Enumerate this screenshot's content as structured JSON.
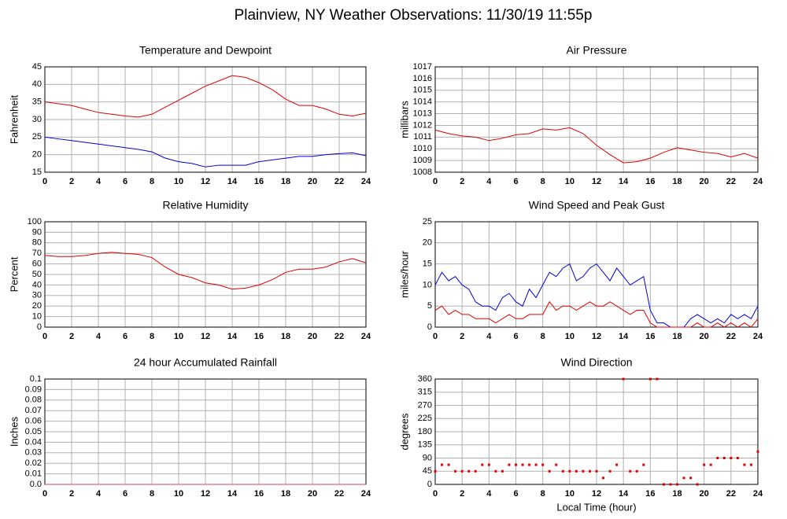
{
  "title": "Plainview, NY Weather Observations: 11/30/19 11:55p",
  "chart_data": [
    {
      "type": "line",
      "title": "Temperature and Dewpoint",
      "ylabel": "Fahrenheit",
      "x": [
        0,
        1,
        2,
        3,
        4,
        5,
        6,
        7,
        8,
        9,
        10,
        11,
        12,
        13,
        14,
        15,
        16,
        17,
        18,
        19,
        20,
        21,
        22,
        23,
        24
      ],
      "series": [
        {
          "color": "#e00000",
          "values": [
            35,
            34.5,
            34,
            33,
            32,
            31.5,
            31,
            30.7,
            31.5,
            33.5,
            35.5,
            37.5,
            39.5,
            41,
            42.5,
            42,
            40.5,
            38.5,
            35.8,
            34,
            34,
            33,
            31.5,
            31,
            31.8
          ]
        },
        {
          "color": "#0000e0",
          "values": [
            25,
            24.5,
            24,
            23.5,
            23,
            22.5,
            22,
            21.5,
            20.8,
            19,
            18,
            17.5,
            16.5,
            17,
            17,
            17,
            18,
            18.5,
            19,
            19.5,
            19.5,
            20,
            20.3,
            20.5,
            19.7
          ]
        }
      ],
      "xlim": [
        0,
        24
      ],
      "xticks": [
        0,
        2,
        4,
        6,
        8,
        10,
        12,
        14,
        16,
        18,
        20,
        22,
        24
      ],
      "ylim": [
        15,
        45
      ],
      "yticks": [
        15,
        20,
        25,
        30,
        35,
        40,
        45
      ],
      "grid": true
    },
    {
      "type": "line",
      "title": "Air Pressure",
      "ylabel": "millibars",
      "x": [
        0,
        1,
        2,
        3,
        4,
        5,
        6,
        7,
        8,
        9,
        10,
        11,
        12,
        13,
        14,
        15,
        16,
        17,
        18,
        19,
        20,
        21,
        22,
        23,
        24
      ],
      "series": [
        {
          "color": "#e00000",
          "values": [
            1011.6,
            1011.3,
            1011.1,
            1011.0,
            1010.7,
            1010.9,
            1011.2,
            1011.3,
            1011.7,
            1011.6,
            1011.8,
            1011.3,
            1010.3,
            1009.5,
            1008.8,
            1008.9,
            1009.2,
            1009.7,
            1010.1,
            1009.9,
            1009.7,
            1009.6,
            1009.3,
            1009.6,
            1009.2
          ]
        }
      ],
      "xlim": [
        0,
        24
      ],
      "xticks": [
        0,
        2,
        4,
        6,
        8,
        10,
        12,
        14,
        16,
        18,
        20,
        22,
        24
      ],
      "ylim": [
        1008,
        1017
      ],
      "yticks": [
        1008,
        1009,
        1010,
        1011,
        1012,
        1013,
        1014,
        1015,
        1016,
        1017
      ],
      "grid": true
    },
    {
      "type": "line",
      "title": "Relative Humidity",
      "ylabel": "Percent",
      "x": [
        0,
        1,
        2,
        3,
        4,
        5,
        6,
        7,
        8,
        9,
        10,
        11,
        12,
        13,
        14,
        15,
        16,
        17,
        18,
        19,
        20,
        21,
        22,
        23,
        24
      ],
      "series": [
        {
          "color": "#e00000",
          "values": [
            68,
            67,
            67,
            68,
            70,
            71,
            70,
            69,
            66,
            57,
            50,
            47,
            42,
            40,
            36,
            37,
            40,
            45,
            52,
            55,
            55,
            57,
            62,
            65,
            61
          ]
        }
      ],
      "xlim": [
        0,
        24
      ],
      "xticks": [
        0,
        2,
        4,
        6,
        8,
        10,
        12,
        14,
        16,
        18,
        20,
        22,
        24
      ],
      "ylim": [
        0,
        100
      ],
      "yticks": [
        0,
        10,
        20,
        30,
        40,
        50,
        60,
        70,
        80,
        90,
        100
      ],
      "grid": true
    },
    {
      "type": "line",
      "title": "Wind Speed and Peak Gust",
      "ylabel": "miles/hour",
      "x": [
        0,
        0.5,
        1,
        1.5,
        2,
        2.5,
        3,
        3.5,
        4,
        4.5,
        5,
        5.5,
        6,
        6.5,
        7,
        7.5,
        8,
        8.5,
        9,
        9.5,
        10,
        10.5,
        11,
        11.5,
        12,
        12.5,
        13,
        13.5,
        14,
        14.5,
        15,
        15.5,
        16,
        16.5,
        17,
        17.5,
        18,
        18.5,
        19,
        19.5,
        20,
        20.5,
        21,
        21.5,
        22,
        22.5,
        23,
        23.5,
        24
      ],
      "series": [
        {
          "color": "#0000e0",
          "values": [
            10,
            13,
            11,
            12,
            10,
            9,
            6,
            5,
            5,
            4,
            7,
            8,
            6,
            5,
            9,
            7,
            10,
            13,
            12,
            14,
            15,
            11,
            12,
            14,
            15,
            13,
            11,
            14,
            12,
            10,
            11,
            12,
            4,
            1,
            1,
            0,
            0,
            0,
            2,
            3,
            2,
            1,
            2,
            1,
            3,
            2,
            3,
            2,
            5
          ]
        },
        {
          "color": "#e00000",
          "values": [
            4,
            5,
            3,
            4,
            3,
            3,
            2,
            2,
            2,
            1,
            2,
            3,
            2,
            2,
            3,
            3,
            3,
            6,
            4,
            5,
            5,
            4,
            5,
            6,
            5,
            5,
            6,
            5,
            4,
            3,
            4,
            4,
            1,
            0,
            0,
            0,
            0,
            0,
            0,
            1,
            0,
            0,
            1,
            0,
            1,
            0,
            1,
            0,
            2
          ]
        }
      ],
      "xlim": [
        0,
        24
      ],
      "xticks": [
        0,
        2,
        4,
        6,
        8,
        10,
        12,
        14,
        16,
        18,
        20,
        22,
        24
      ],
      "ylim": [
        0,
        25
      ],
      "yticks": [
        0,
        5,
        10,
        15,
        20,
        25
      ],
      "grid": true
    },
    {
      "type": "line",
      "title": "24 hour Accumulated Rainfall",
      "ylabel": "Inches",
      "x": [
        0,
        24
      ],
      "series": [
        {
          "color": "#e04060",
          "values": [
            0,
            0
          ]
        }
      ],
      "xlim": [
        0,
        24
      ],
      "xticks": [
        0,
        2,
        4,
        6,
        8,
        10,
        12,
        14,
        16,
        18,
        20,
        22,
        24
      ],
      "ylim": [
        0,
        0.1
      ],
      "yticks": [
        {
          "value": 0,
          "label": "0.0"
        },
        0.01,
        0.02,
        0.03,
        0.04,
        0.05,
        0.06,
        0.07,
        0.08,
        0.09,
        0.1
      ],
      "grid": true
    },
    {
      "type": "scatter",
      "title": "Wind Direction",
      "ylabel": "degrees",
      "xlabel": "Local Time (hour)",
      "x": [
        0,
        0.5,
        1,
        1.5,
        2,
        2.5,
        3,
        3.5,
        4,
        4.5,
        5,
        5.5,
        6,
        6.5,
        7,
        7.5,
        8,
        8.5,
        9,
        9.5,
        10,
        10.5,
        11,
        11.5,
        12,
        12.5,
        13,
        13.5,
        14,
        14.5,
        15,
        15.5,
        16,
        16.5,
        17,
        17.5,
        18,
        18.5,
        19,
        19.5,
        20,
        20.5,
        21,
        21.5,
        22,
        22.5,
        23,
        23.5,
        24
      ],
      "series": [
        {
          "color": "#e00000",
          "values": [
            45,
            67,
            67,
            45,
            45,
            45,
            45,
            67,
            67,
            45,
            45,
            67,
            67,
            67,
            67,
            67,
            67,
            45,
            67,
            45,
            45,
            45,
            45,
            45,
            45,
            22,
            45,
            67,
            360,
            45,
            45,
            67,
            360,
            360,
            0,
            0,
            0,
            22,
            22,
            0,
            67,
            67,
            90,
            90,
            90,
            90,
            67,
            67,
            112
          ]
        }
      ],
      "xlim": [
        0,
        24
      ],
      "xticks": [
        0,
        2,
        4,
        6,
        8,
        10,
        12,
        14,
        16,
        18,
        20,
        22,
        24
      ],
      "ylim": [
        0,
        360
      ],
      "yticks": [
        0,
        45,
        90,
        135,
        180,
        225,
        270,
        315,
        360
      ],
      "grid": true
    }
  ]
}
